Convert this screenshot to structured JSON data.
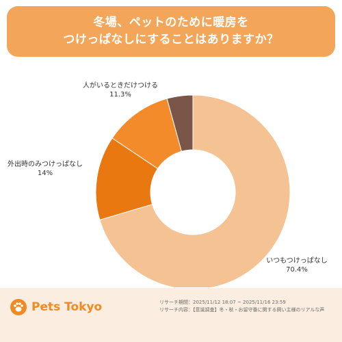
{
  "header": {
    "title_line1": "冬場、ペットのために暖房を",
    "title_line2": "つけっぱなしにすることはありますか？"
  },
  "chart_data": {
    "type": "pie",
    "variant": "donut",
    "categories": [
      "いつもつけっぱなし",
      "外出時のみつけっぱなし",
      "人がいるときだけつける",
      ""
    ],
    "values": [
      70.4,
      14,
      11.3,
      4.3
    ],
    "value_labels": [
      "70.4%",
      "14%",
      "11.3%",
      ""
    ],
    "colors": [
      "#f5c294",
      "#e8780f",
      "#f48b2a",
      "#7a5548"
    ]
  },
  "footer": {
    "brand": "Pets Tokyo",
    "research_period": "リサーチ期間：2025/11/12 18:07 ~ 2025/11/16 23:59",
    "research_content": "リサーチ内容：【意識調査】冬・秋・お留守番に関する飼い主様のリアルな声"
  }
}
